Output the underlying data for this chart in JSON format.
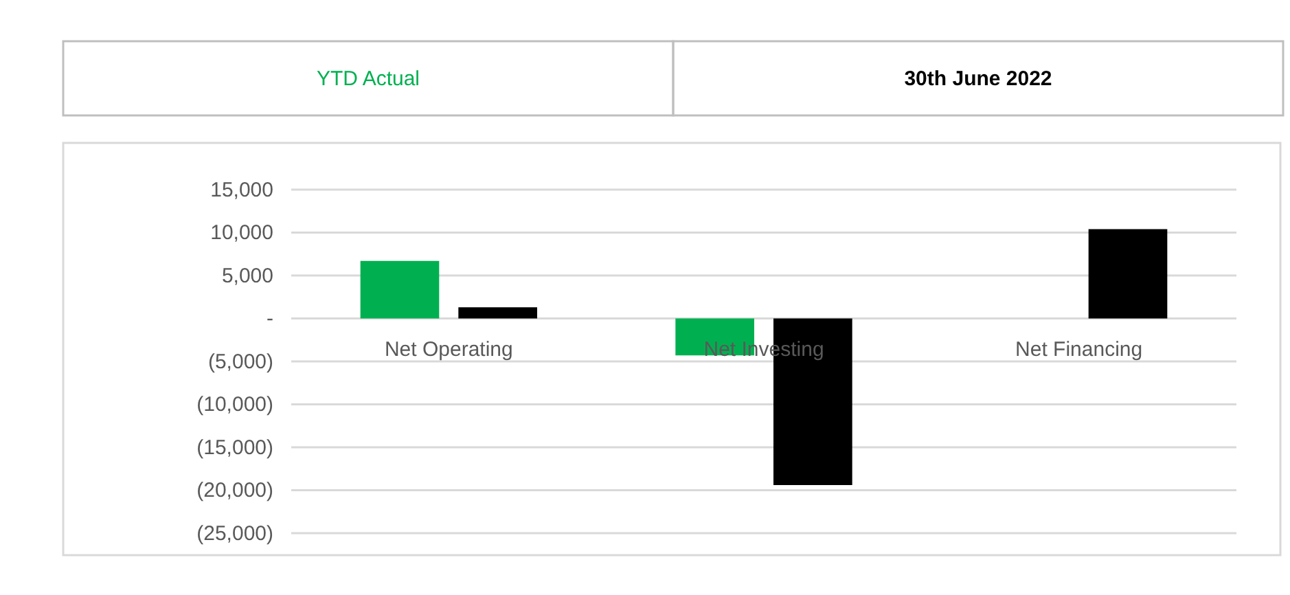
{
  "chart_data": {
    "type": "bar",
    "categories": [
      "Net Operating",
      "Net Investing",
      "Net Financing"
    ],
    "series": [
      {
        "name": "YTD Actual",
        "color": "#00b050",
        "values": [
          6700,
          -4300,
          0
        ]
      },
      {
        "name": "30th June 2022",
        "color": "#000000",
        "values": [
          1300,
          -19400,
          10400
        ]
      }
    ],
    "ylim": [
      -25000,
      15000
    ],
    "yticks": [
      {
        "value": 15000,
        "label": "15,000"
      },
      {
        "value": 10000,
        "label": "10,000"
      },
      {
        "value": 5000,
        "label": "5,000"
      },
      {
        "value": 0,
        "label": "-"
      },
      {
        "value": -5000,
        "label": "(5,000)"
      },
      {
        "value": -10000,
        "label": "(10,000)"
      },
      {
        "value": -15000,
        "label": "(15,000)"
      },
      {
        "value": -20000,
        "label": "(20,000)"
      },
      {
        "value": -25000,
        "label": "(25,000)"
      }
    ],
    "grid": "y",
    "legend": "top"
  }
}
